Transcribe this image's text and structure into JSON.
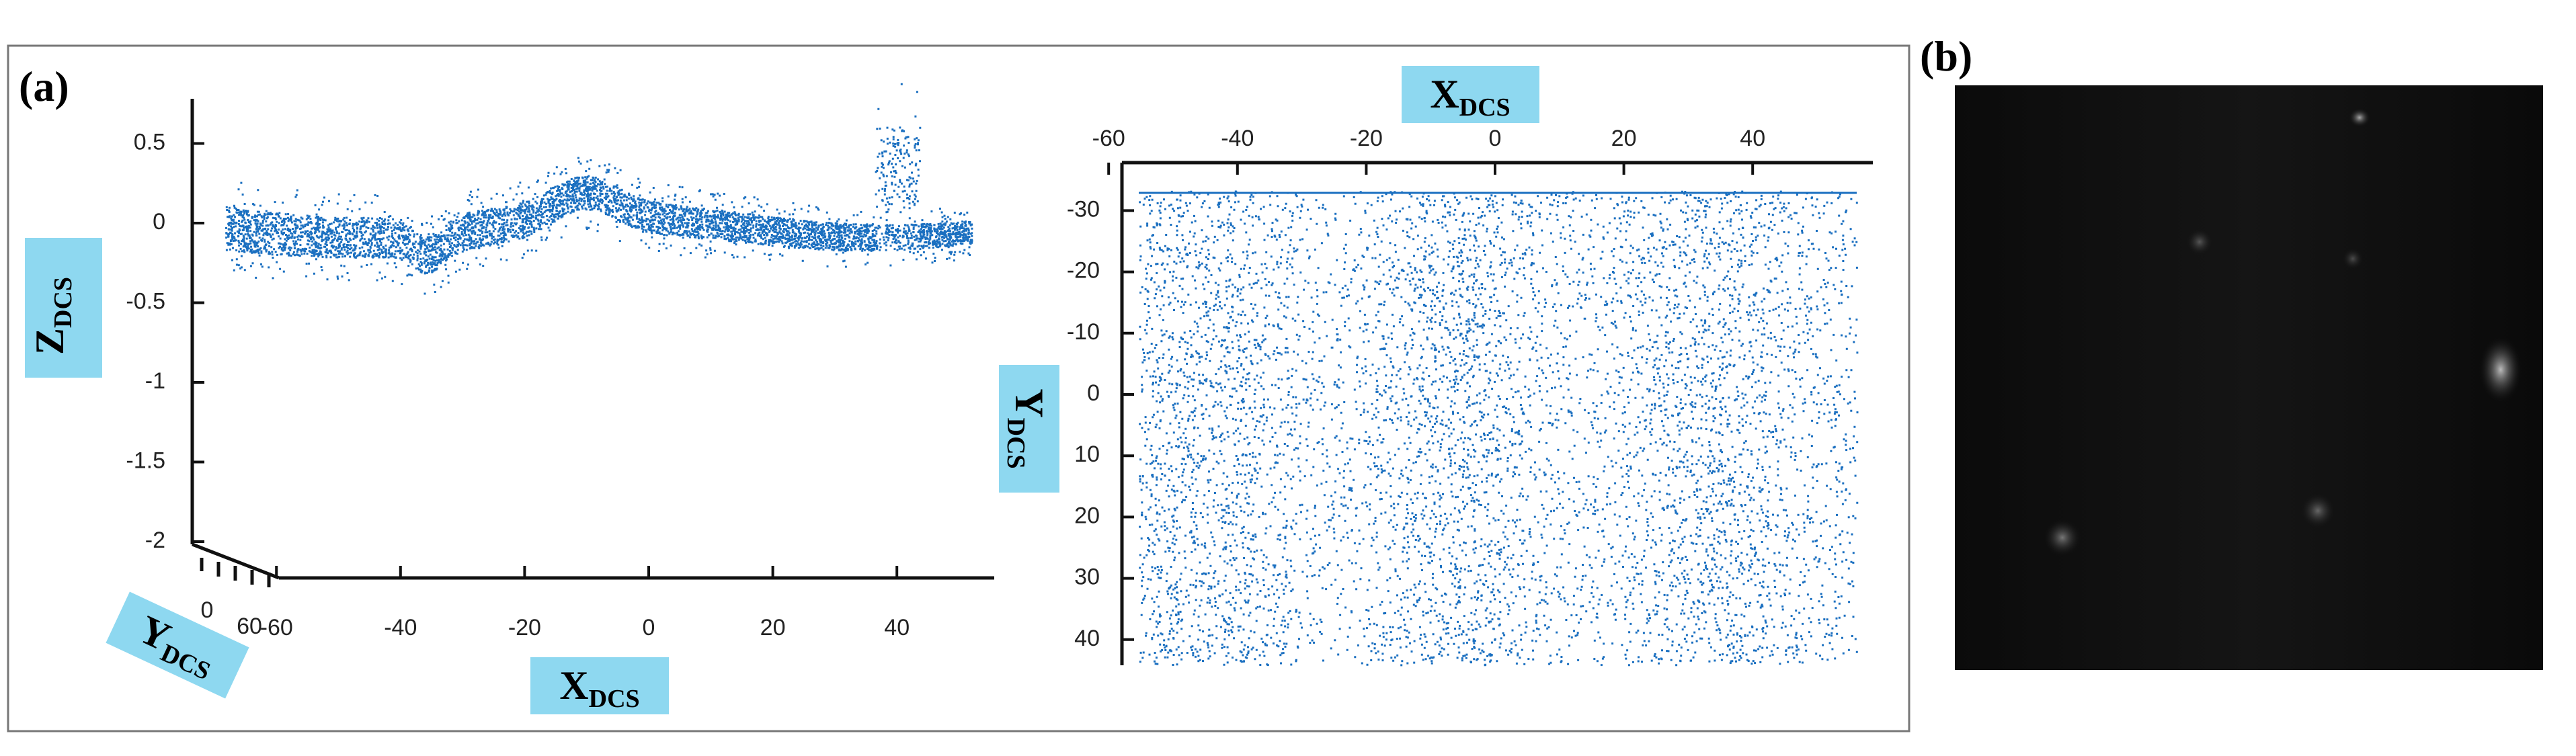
{
  "panel_a": {
    "label": "(a)",
    "view_3d": {
      "z_axis": {
        "label": "Z",
        "subscript": "DCS",
        "ticks": [
          0.5,
          0,
          -0.5,
          -1,
          -1.5,
          -2
        ]
      },
      "x_axis": {
        "label": "X",
        "subscript": "DCS",
        "ticks": [
          -60,
          -40,
          -20,
          0,
          20,
          40
        ]
      },
      "y_axis": {
        "label": "Y",
        "subscript": "DCS",
        "ticks": [
          0,
          60
        ]
      }
    },
    "view_top": {
      "x_axis": {
        "label": "X",
        "subscript": "DCS",
        "ticks": [
          -60,
          -40,
          -20,
          0,
          20,
          40
        ]
      },
      "y_axis": {
        "label": "Y",
        "subscript": "DCS",
        "ticks": [
          -30,
          -20,
          -10,
          0,
          10,
          20,
          30,
          40
        ]
      }
    }
  },
  "panel_b": {
    "label": "(b)"
  }
}
